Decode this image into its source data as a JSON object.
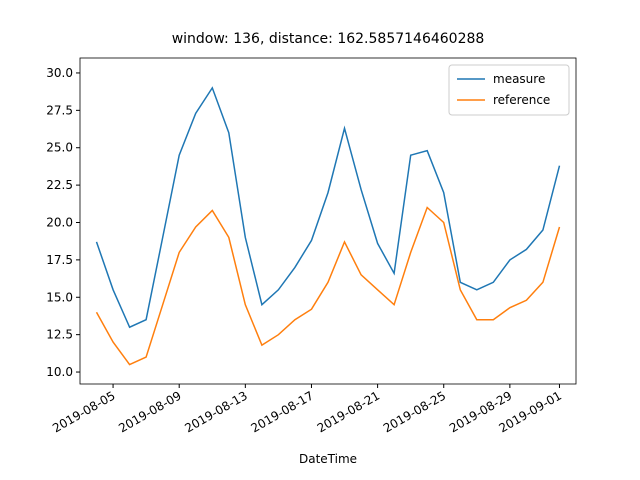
{
  "chart_data": {
    "type": "line",
    "title": "window: 136, distance: 162.5857146460288",
    "xlabel": "DateTime",
    "x": [
      "2019-08-04",
      "2019-08-05",
      "2019-08-06",
      "2019-08-07",
      "2019-08-08",
      "2019-08-09",
      "2019-08-10",
      "2019-08-11",
      "2019-08-12",
      "2019-08-13",
      "2019-08-14",
      "2019-08-15",
      "2019-08-16",
      "2019-08-17",
      "2019-08-18",
      "2019-08-19",
      "2019-08-20",
      "2019-08-21",
      "2019-08-22",
      "2019-08-23",
      "2019-08-24",
      "2019-08-25",
      "2019-08-26",
      "2019-08-27",
      "2019-08-28",
      "2019-08-29",
      "2019-08-30",
      "2019-08-31",
      "2019-09-01"
    ],
    "series": [
      {
        "name": "measure",
        "color": "#1f77b4",
        "values": [
          18.7,
          15.5,
          13.0,
          13.5,
          19.0,
          24.5,
          27.3,
          29.0,
          26.0,
          19.0,
          14.5,
          15.5,
          17.0,
          18.8,
          22.0,
          26.3,
          22.2,
          18.6,
          16.6,
          24.5,
          24.8,
          22.0,
          16.0,
          15.5,
          16.0,
          17.5,
          18.2,
          19.5,
          23.8
        ]
      },
      {
        "name": "reference",
        "color": "#ff7f0e",
        "values": [
          14.0,
          12.0,
          10.5,
          11.0,
          14.5,
          18.0,
          19.7,
          20.8,
          19.0,
          14.5,
          11.8,
          12.5,
          13.5,
          14.2,
          16.0,
          18.7,
          16.5,
          15.5,
          14.5,
          18.0,
          21.0,
          20.0,
          15.5,
          13.5,
          13.5,
          14.3,
          14.8,
          16.0,
          19.7
        ]
      }
    ],
    "xlim": [
      "2019-08-03",
      "2019-09-02"
    ],
    "xticks": [
      "2019-08-05",
      "2019-08-09",
      "2019-08-13",
      "2019-08-17",
      "2019-08-21",
      "2019-08-25",
      "2019-08-29",
      "2019-09-01"
    ],
    "ylim": [
      9.2,
      31.0
    ],
    "yticks": [
      {
        "value": 10,
        "label": "10.0"
      },
      {
        "value": 12.5,
        "label": "12.5"
      },
      {
        "value": 15,
        "label": "15.0"
      },
      {
        "value": 17.5,
        "label": "17.5"
      },
      {
        "value": 20,
        "label": "20.0"
      },
      {
        "value": 22.5,
        "label": "22.5"
      },
      {
        "value": 25,
        "label": "25.0"
      },
      {
        "value": 27.5,
        "label": "27.5"
      },
      {
        "value": 30,
        "label": "30.0"
      }
    ],
    "grid": false,
    "legend": "upper right"
  }
}
